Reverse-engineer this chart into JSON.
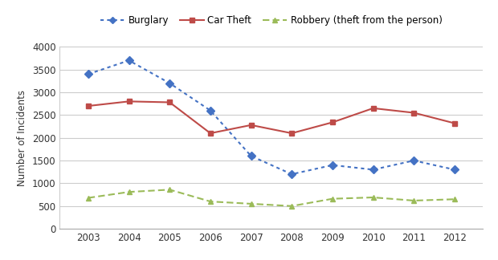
{
  "years": [
    2003,
    2004,
    2005,
    2006,
    2007,
    2008,
    2009,
    2010,
    2011,
    2012
  ],
  "burglary": [
    3400,
    3700,
    3200,
    2600,
    1600,
    1200,
    1400,
    1300,
    1500,
    1300
  ],
  "car_theft": [
    2700,
    2800,
    2780,
    2100,
    2280,
    2100,
    2340,
    2650,
    2550,
    2320
  ],
  "robbery": [
    680,
    810,
    860,
    600,
    550,
    500,
    660,
    690,
    620,
    650
  ],
  "burglary_color": "#4472C4",
  "car_theft_color": "#BE4B48",
  "robbery_color": "#9BBB59",
  "ylabel": "Number of Incidents",
  "ylim": [
    0,
    4000
  ],
  "yticks": [
    0,
    500,
    1000,
    1500,
    2000,
    2500,
    3000,
    3500,
    4000
  ],
  "legend_labels": [
    "Burglary",
    "Car Theft",
    "Robbery (theft from the person)"
  ],
  "bg_color": "#FFFFFF",
  "grid_color": "#CCCCCC"
}
